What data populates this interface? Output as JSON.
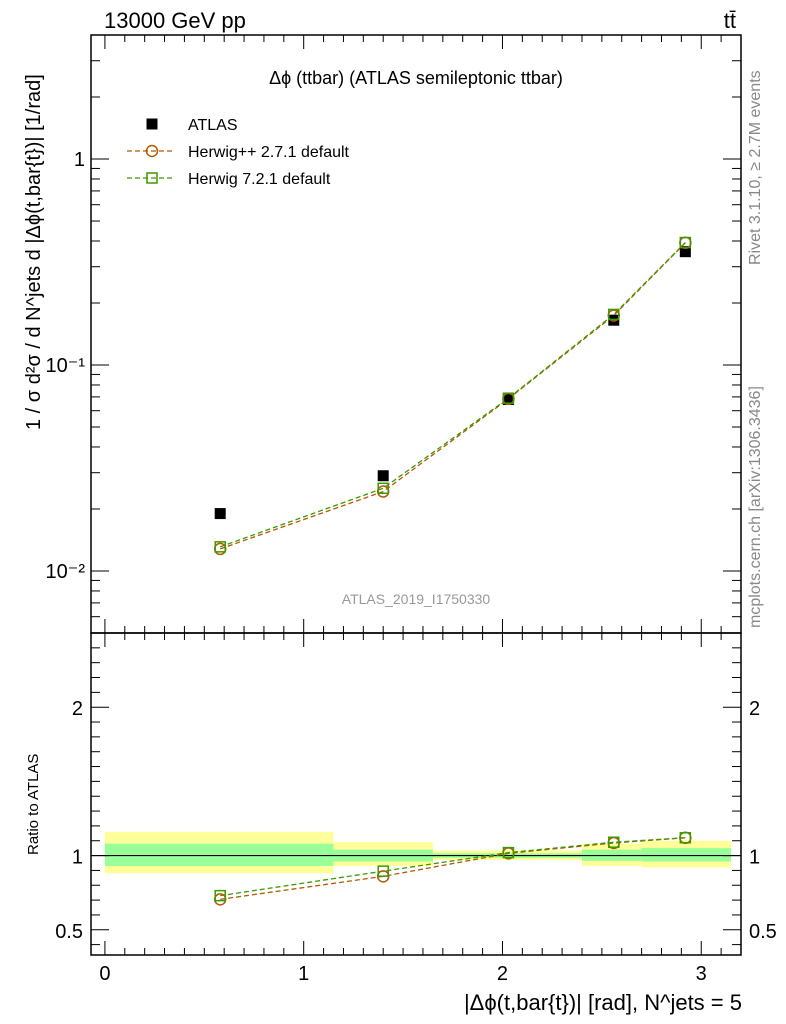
{
  "header": {
    "left_label": "13000 GeV pp",
    "right_label": "tt̄"
  },
  "side": {
    "rivet_label": "Rivet 3.1.10, ≥ 2.7M events",
    "mcplots_label": "mcplots.cern.ch [arXiv:1306.3436]"
  },
  "chart_data": [
    {
      "type": "scatter",
      "title": "Δϕ (ttbar) (ATLAS semileptonic ttbar)",
      "ylabel": "1 / σ d²σ / d N^jets d |Δϕ(t,bar{t})| [1/rad]",
      "watermark": "ATLAS_2019_I1750330",
      "yscale": "log",
      "xlim": [
        -0.07,
        3.2
      ],
      "ylim": [
        0.005,
        4.0
      ],
      "ytick_labels": [
        "10⁻²",
        "10⁻¹",
        "1"
      ],
      "x": [
        0.58,
        1.4,
        2.03,
        2.56,
        2.92
      ],
      "series": [
        {
          "name": "ATLAS",
          "marker": "filled-square",
          "color": "#000000",
          "values": [
            0.019,
            0.029,
            0.068,
            0.165,
            0.355
          ]
        },
        {
          "name": "Herwig++ 2.7.1 default",
          "marker": "open-circle",
          "color": "#b35900",
          "values": [
            0.0128,
            0.0243,
            0.0685,
            0.174,
            0.392
          ]
        },
        {
          "name": "Herwig 7.2.1 default",
          "marker": "open-square",
          "color": "#3d9900",
          "values": [
            0.0131,
            0.0252,
            0.069,
            0.176,
            0.393
          ]
        }
      ],
      "legend_position": "top-left"
    },
    {
      "type": "scatter",
      "ylabel": "Ratio to ATLAS",
      "xlabel": "|Δϕ(t,bar{t})| [rad], N^jets = 5",
      "xlim": [
        -0.07,
        3.2
      ],
      "ylim": [
        0.33,
        2.5
      ],
      "yticks": [
        0.5,
        1,
        2
      ],
      "ytick_labels": [
        "0.5",
        "1",
        "2"
      ],
      "xticks": [
        0,
        1,
        2,
        3
      ],
      "xtick_labels": [
        "0",
        "1",
        "2",
        "3"
      ],
      "x": [
        0.58,
        1.4,
        2.03,
        2.56,
        2.92
      ],
      "series": [
        {
          "name": "Herwig++ 2.7.1 default",
          "color": "#b35900",
          "values": [
            0.705,
            0.86,
            1.015,
            1.085,
            1.12
          ]
        },
        {
          "name": "Herwig 7.2.1 default",
          "color": "#3d9900",
          "values": [
            0.73,
            0.895,
            1.02,
            1.09,
            1.12
          ]
        }
      ],
      "bands": [
        {
          "x0": 0.0,
          "x1": 1.15,
          "yellow": [
            0.88,
            1.16
          ],
          "green": [
            0.93,
            1.08
          ]
        },
        {
          "x0": 1.15,
          "x1": 1.65,
          "yellow": [
            0.93,
            1.09
          ],
          "green": [
            0.96,
            1.04
          ]
        },
        {
          "x0": 1.65,
          "x1": 2.4,
          "yellow": [
            0.97,
            1.035
          ],
          "green": [
            0.985,
            1.015
          ]
        },
        {
          "x0": 2.4,
          "x1": 2.7,
          "yellow": [
            0.93,
            1.08
          ],
          "green": [
            0.965,
            1.04
          ]
        },
        {
          "x0": 2.7,
          "x1": 3.15,
          "yellow": [
            0.92,
            1.1
          ],
          "green": [
            0.96,
            1.05
          ]
        }
      ]
    }
  ]
}
